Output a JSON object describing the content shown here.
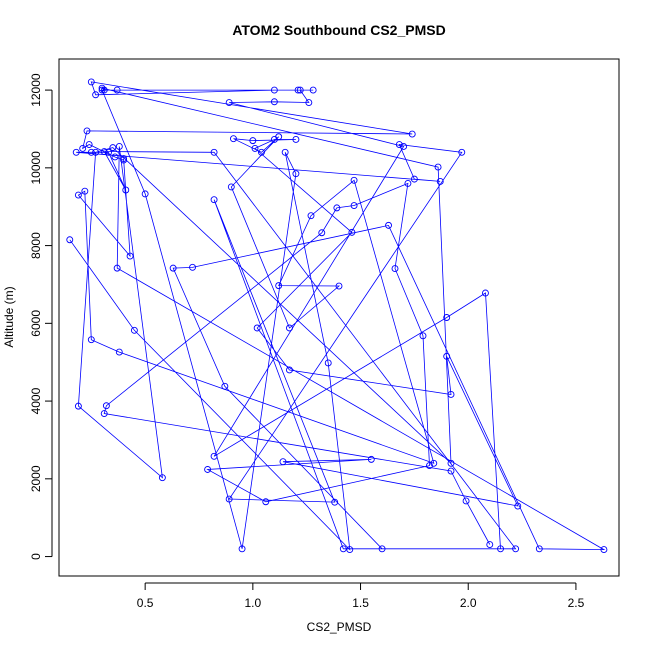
{
  "chart_data": {
    "type": "line",
    "title": "ATOM2 Southbound CS2_PMSD",
    "xlabel": "CS2_PMSD",
    "ylabel": "Altitude (m)",
    "xlim": [
      0.1,
      2.7
    ],
    "ylim": [
      -500,
      12800
    ],
    "x_ticks": [
      0.5,
      1.0,
      1.5,
      2.0,
      2.5
    ],
    "x_tick_labels": [
      "0.5",
      "1.0",
      "1.5",
      "2.0",
      "2.5"
    ],
    "y_ticks": [
      0,
      2000,
      4000,
      6000,
      8000,
      10000,
      12000
    ],
    "y_tick_labels": [
      "0",
      "2000",
      "4000",
      "6000",
      "8000",
      "10000",
      "12000"
    ],
    "grid": false,
    "legend": "none",
    "series": [
      {
        "color": "#0000ff",
        "marker": "open-circle",
        "points": [
          [
            0.15,
            8150
          ],
          [
            0.45,
            5820
          ],
          [
            1.45,
            180
          ],
          [
            1.35,
            4980
          ],
          [
            1.15,
            10400
          ],
          [
            1.2,
            9850
          ],
          [
            0.95,
            200
          ],
          [
            0.5,
            9330
          ],
          [
            0.3,
            12000
          ],
          [
            0.37,
            12000
          ],
          [
            1.22,
            12000
          ],
          [
            1.26,
            11680
          ],
          [
            1.1,
            11700
          ],
          [
            0.89,
            11680
          ],
          [
            1.7,
            10550
          ],
          [
            0.82,
            2580
          ],
          [
            1.9,
            6150
          ],
          [
            2.08,
            6780
          ],
          [
            2.15,
            200
          ],
          [
            1.42,
            200
          ],
          [
            0.82,
            9180
          ],
          [
            1.38,
            1400
          ],
          [
            0.89,
            1480
          ],
          [
            1.97,
            10400
          ],
          [
            1.68,
            10600
          ],
          [
            1.75,
            9710
          ],
          [
            1.87,
            9650
          ],
          [
            0.18,
            10400
          ],
          [
            0.25,
            10400
          ],
          [
            0.33,
            10400
          ],
          [
            0.41,
            9430
          ],
          [
            0.31,
            10420
          ],
          [
            0.82,
            10400
          ],
          [
            2.22,
            200
          ],
          [
            1.6,
            200
          ],
          [
            0.87,
            4380
          ],
          [
            0.63,
            7420
          ],
          [
            0.72,
            7440
          ],
          [
            1.63,
            8520
          ],
          [
            2.33,
            200
          ],
          [
            2.63,
            180
          ],
          [
            0.37,
            7420
          ],
          [
            0.38,
            10550
          ],
          [
            0.58,
            2030
          ],
          [
            0.19,
            3870
          ],
          [
            0.27,
            10400
          ],
          [
            0.35,
            10520
          ],
          [
            1.92,
            2400
          ],
          [
            1.86,
            10020
          ],
          [
            0.3,
            12050
          ],
          [
            0.31,
            12000
          ],
          [
            1.28,
            12000
          ],
          [
            1.21,
            12000
          ],
          [
            1.1,
            12000
          ],
          [
            0.27,
            11880
          ],
          [
            0.25,
            12210
          ],
          [
            1.74,
            10870
          ],
          [
            0.23,
            10950
          ],
          [
            0.21,
            10500
          ],
          [
            0.24,
            10600
          ],
          [
            0.36,
            10280
          ],
          [
            0.4,
            10200
          ],
          [
            0.4,
            10240
          ],
          [
            0.43,
            7730
          ],
          [
            0.19,
            9300
          ],
          [
            0.22,
            9400
          ],
          [
            0.25,
            5580
          ],
          [
            0.38,
            5260
          ],
          [
            1.84,
            2400
          ],
          [
            1.47,
            9680
          ],
          [
            1.27,
            8770
          ],
          [
            1.12,
            6970
          ],
          [
            1.4,
            6960
          ],
          [
            1.17,
            5880
          ],
          [
            0.9,
            9510
          ],
          [
            1.12,
            10800
          ],
          [
            1.04,
            10400
          ],
          [
            0.91,
            10750
          ],
          [
            1.0,
            10700
          ],
          [
            1.2,
            10730
          ],
          [
            1.1,
            10730
          ],
          [
            1.01,
            10500
          ],
          [
            1.46,
            8340
          ],
          [
            1.02,
            5880
          ],
          [
            1.17,
            4800
          ],
          [
            1.92,
            4170
          ],
          [
            1.9,
            5150
          ],
          [
            2.23,
            1300
          ],
          [
            1.14,
            2440
          ],
          [
            1.55,
            2500
          ],
          [
            0.79,
            2240
          ],
          [
            1.06,
            1410
          ],
          [
            1.82,
            2340
          ],
          [
            1.79,
            5680
          ],
          [
            1.66,
            7410
          ],
          [
            1.72,
            9600
          ],
          [
            1.47,
            9030
          ],
          [
            1.39,
            8970
          ],
          [
            1.32,
            8330
          ],
          [
            0.32,
            3880
          ],
          [
            0.31,
            3680
          ],
          [
            1.92,
            2200
          ],
          [
            1.99,
            1430
          ],
          [
            2.1,
            310
          ]
        ]
      }
    ]
  }
}
